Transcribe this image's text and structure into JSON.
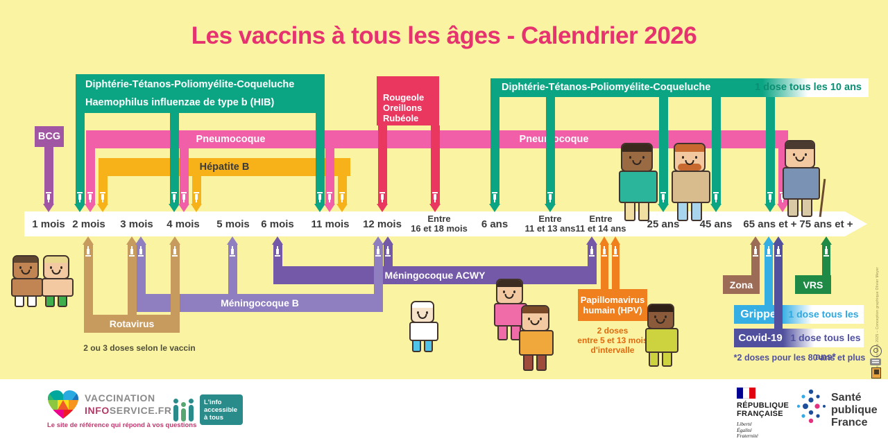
{
  "title": "Les vaccins à tous les âges - Calendrier 2026",
  "timeline": {
    "ages": [
      "1 mois",
      "2 mois",
      "3 mois",
      "4 mois",
      "5 mois",
      "6 mois",
      "11 mois",
      "12 mois",
      "Entre\n16 et 18 mois",
      "6 ans",
      "Entre\n11 et 13 ans",
      "Entre\n11 et 14 ans",
      "25 ans",
      "45 ans",
      "65 ans et +",
      "75 ans et +"
    ]
  },
  "vaccines": {
    "bcg": "BCG",
    "dtp_hib_line1": "Diphtérie-Tétanos-Poliomyélite-Coqueluche",
    "dtp_hib_line2": "Haemophilus influenzae de type b (HIB)",
    "ror": "Rougeole\nOreillons\nRubéole",
    "dtp_adult": "Diphtérie-Tétanos-Poliomyélite-Coqueluche",
    "dtp_adult_note": "1 dose tous les 10 ans",
    "pneumocoque": "Pneumocoque",
    "hepatite_b": "Hépatite B",
    "rotavirus": "Rotavirus",
    "rotavirus_note": "2 ou 3 doses selon le vaccin",
    "men_b": "Méningocoque B",
    "men_acwy": "Méningocoque ACWY",
    "hpv": "Papillomavirus\nhumain (HPV)",
    "hpv_note": "2 doses\nentre 5 et 13 mois\nd'intervalle",
    "zona": "Zona",
    "grippe": "Grippe",
    "grippe_note": "1 dose tous les ans",
    "covid": "Covid-19",
    "covid_note": "1 dose tous les ans*",
    "covid_footnote": "*2 doses pour les 80 ans et plus",
    "vrs": "VRS"
  },
  "schedule": [
    {
      "vaccine": "BCG",
      "doses_at": [
        "1 mois"
      ]
    },
    {
      "vaccine": "Diphtérie-Tétanos-Poliomyélite-Coqueluche / Haemophilus influenzae de type b (HIB)",
      "doses_at": [
        "2 mois",
        "4 mois",
        "11 mois"
      ]
    },
    {
      "vaccine": "Pneumocoque",
      "doses_at": [
        "2 mois",
        "4 mois",
        "11 mois",
        "65 ans et +"
      ]
    },
    {
      "vaccine": "Hépatite B",
      "doses_at": [
        "2 mois",
        "4 mois",
        "11 mois"
      ]
    },
    {
      "vaccine": "Rougeole-Oreillons-Rubéole",
      "doses_at": [
        "12 mois",
        "Entre 16 et 18 mois"
      ]
    },
    {
      "vaccine": "Diphtérie-Tétanos-Poliomyélite-Coqueluche",
      "doses_at": [
        "6 ans",
        "Entre 11 et 13 ans",
        "25 ans",
        "45 ans",
        "65 ans et +"
      ],
      "note": "1 dose tous les 10 ans"
    },
    {
      "vaccine": "Rotavirus",
      "doses_at": [
        "2 mois",
        "3 mois",
        "4 mois"
      ],
      "note": "2 ou 3 doses selon le vaccin"
    },
    {
      "vaccine": "Méningocoque B",
      "doses_at": [
        "3 mois",
        "5 mois",
        "12 mois"
      ]
    },
    {
      "vaccine": "Méningocoque ACWY",
      "doses_at": [
        "6 mois",
        "12 mois",
        "Entre 11 et 14 ans"
      ]
    },
    {
      "vaccine": "Papillomavirus humain (HPV)",
      "doses_at": [
        "Entre 11 et 14 ans"
      ],
      "note": "2 doses entre 5 et 13 mois d'intervalle"
    },
    {
      "vaccine": "Zona",
      "doses_at": [
        "65 ans et +"
      ]
    },
    {
      "vaccine": "Grippe",
      "doses_at": [
        "65 ans et +"
      ],
      "note": "1 dose tous les ans"
    },
    {
      "vaccine": "Covid-19",
      "doses_at": [
        "65 ans et +"
      ],
      "note": "1 dose tous les ans*",
      "footnote": "*2 doses pour les 80 ans et plus"
    },
    {
      "vaccine": "VRS",
      "doses_at": [
        "75 ans et +"
      ]
    }
  ],
  "colors": {
    "background": "#FAF3A1",
    "title": "#E6336F",
    "green": "#0ca584",
    "pink": "#f05fa7",
    "yellow": "#f7b219",
    "purple": "#a156a3",
    "red": "#e9375f",
    "tan": "#c79a5d",
    "men_b": "#8f7ec0",
    "men_acwy": "#7459a8",
    "orange": "#f0801e",
    "zona": "#9c6c57",
    "grippe": "#35aee4",
    "covid": "#50509f",
    "vrs": "#1f8a46",
    "band_text": "#3b3b3b"
  },
  "footer": {
    "vis_line1": "VACCINATION",
    "vis_info": "INFO",
    "vis_service": "SERVICE.FR",
    "vis_tagline": "Le site de référence qui répond à vos questions",
    "access_text": "L'info\naccessible\nà tous",
    "republique": "RÉPUBLIQUE\nFRANÇAISE",
    "devise": "Liberté\nÉgalité\nFraternité",
    "spf": "Santé\npublique\nFrance"
  },
  "credit": "3701-25368-A – État des connaissances mars 2025 – Conception graphique Olivier Meyer"
}
